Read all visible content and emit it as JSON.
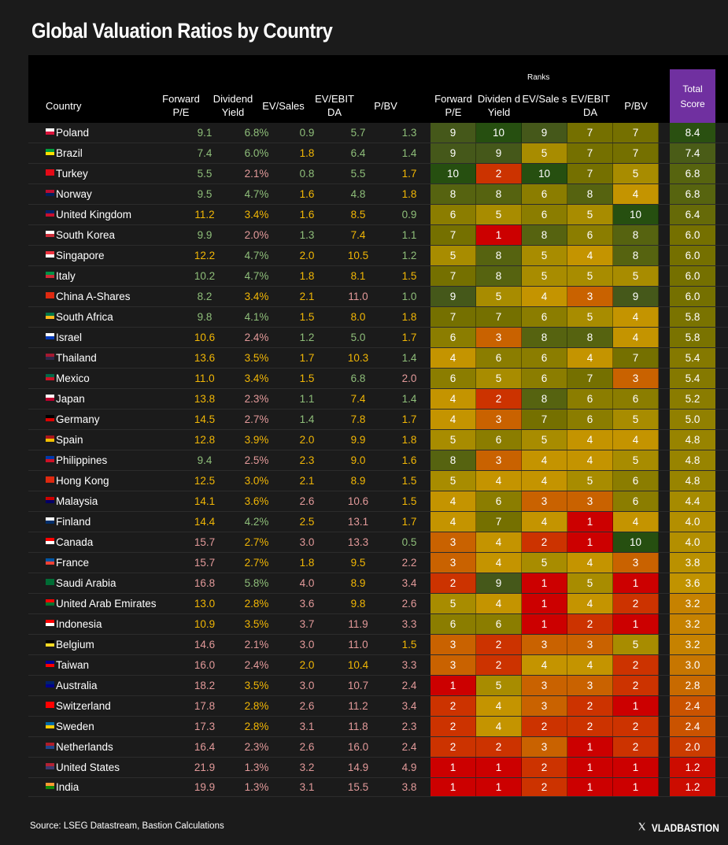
{
  "chart_data": {
    "type": "table",
    "title": "Global Valuation Ratios by Country",
    "columns": [
      "Country",
      "Forward P/E",
      "Dividend Yield",
      "EV/Sales",
      "EV/EBIT DA",
      "P/BV"
    ],
    "ranks_label": "Ranks",
    "rank_columns": [
      "Forward P/E",
      "Dividen d Yield",
      "EV/Sale s",
      "EV/EBIT DA",
      "P/BV"
    ],
    "total_label": "Total Score",
    "text_color_key": {
      "g": "#8fbf7a",
      "y": "#f2b705",
      "p": "#e39a9a"
    },
    "rows": [
      {
        "country": "Poland",
        "flag": [
          "#ffffff",
          "#dc143c"
        ],
        "values": [
          "9.1",
          "6.8%",
          "0.9",
          "5.7",
          "1.3"
        ],
        "colors": "ggggg",
        "ranks": [
          9,
          10,
          9,
          7,
          7
        ],
        "total": "8.4"
      },
      {
        "country": "Brazil",
        "flag": [
          "#009c3b",
          "#ffdf00"
        ],
        "values": [
          "7.4",
          "6.0%",
          "1.8",
          "6.4",
          "1.4"
        ],
        "colors": "ggygg",
        "ranks": [
          9,
          9,
          5,
          7,
          7
        ],
        "total": "7.4"
      },
      {
        "country": "Turkey",
        "flag": [
          "#e30a17",
          "#e30a17"
        ],
        "values": [
          "5.5",
          "2.1%",
          "0.8",
          "5.5",
          "1.7"
        ],
        "colors": "gpggy",
        "ranks": [
          10,
          2,
          10,
          7,
          5
        ],
        "total": "6.8"
      },
      {
        "country": "Norway",
        "flag": [
          "#ba0c2f",
          "#00205b"
        ],
        "values": [
          "9.5",
          "4.7%",
          "1.6",
          "4.8",
          "1.8"
        ],
        "colors": "ggygy",
        "ranks": [
          8,
          8,
          6,
          8,
          4
        ],
        "total": "6.8"
      },
      {
        "country": "United Kingdom",
        "flag": [
          "#012169",
          "#c8102e"
        ],
        "values": [
          "11.2",
          "3.4%",
          "1.6",
          "8.5",
          "0.9"
        ],
        "colors": "yyyyg",
        "ranks": [
          6,
          5,
          6,
          5,
          10
        ],
        "total": "6.4"
      },
      {
        "country": "South Korea",
        "flag": [
          "#ffffff",
          "#cd2e3a"
        ],
        "values": [
          "9.9",
          "2.0%",
          "1.3",
          "7.4",
          "1.1"
        ],
        "colors": "gpgyg",
        "ranks": [
          7,
          1,
          8,
          6,
          8
        ],
        "total": "6.0"
      },
      {
        "country": "Singapore",
        "flag": [
          "#ef3340",
          "#ffffff"
        ],
        "values": [
          "12.2",
          "4.7%",
          "2.0",
          "10.5",
          "1.2"
        ],
        "colors": "ygyyg",
        "ranks": [
          5,
          8,
          5,
          4,
          8
        ],
        "total": "6.0"
      },
      {
        "country": "Italy",
        "flag": [
          "#009246",
          "#ce2b37"
        ],
        "values": [
          "10.2",
          "4.7%",
          "1.8",
          "8.1",
          "1.5"
        ],
        "colors": "ggyyy",
        "ranks": [
          7,
          8,
          5,
          5,
          5
        ],
        "total": "6.0"
      },
      {
        "country": "China A-Shares",
        "flag": [
          "#de2910",
          "#de2910"
        ],
        "values": [
          "8.2",
          "3.4%",
          "2.1",
          "11.0",
          "1.0"
        ],
        "colors": "gyypg",
        "ranks": [
          9,
          5,
          4,
          3,
          9
        ],
        "total": "6.0"
      },
      {
        "country": "South Africa",
        "flag": [
          "#007749",
          "#ffb81c"
        ],
        "values": [
          "9.8",
          "4.1%",
          "1.5",
          "8.0",
          "1.8"
        ],
        "colors": "ggyyy",
        "ranks": [
          7,
          7,
          6,
          5,
          4
        ],
        "total": "5.8"
      },
      {
        "country": "Israel",
        "flag": [
          "#ffffff",
          "#0038b8"
        ],
        "values": [
          "10.6",
          "2.4%",
          "1.2",
          "5.0",
          "1.7"
        ],
        "colors": "ypggy",
        "ranks": [
          6,
          3,
          8,
          8,
          4
        ],
        "total": "5.8"
      },
      {
        "country": "Thailand",
        "flag": [
          "#a51931",
          "#2d2a4a"
        ],
        "values": [
          "13.6",
          "3.5%",
          "1.7",
          "10.3",
          "1.4"
        ],
        "colors": "yyyyg",
        "ranks": [
          4,
          6,
          6,
          4,
          7
        ],
        "total": "5.4"
      },
      {
        "country": "Mexico",
        "flag": [
          "#006847",
          "#ce1126"
        ],
        "values": [
          "11.0",
          "3.4%",
          "1.5",
          "6.8",
          "2.0"
        ],
        "colors": "yyygp",
        "ranks": [
          6,
          5,
          6,
          7,
          3
        ],
        "total": "5.4"
      },
      {
        "country": "Japan",
        "flag": [
          "#ffffff",
          "#bc002d"
        ],
        "values": [
          "13.8",
          "2.3%",
          "1.1",
          "7.4",
          "1.4"
        ],
        "colors": "ypgyg",
        "ranks": [
          4,
          2,
          8,
          6,
          6
        ],
        "total": "5.2"
      },
      {
        "country": "Germany",
        "flag": [
          "#000000",
          "#dd0000"
        ],
        "values": [
          "14.5",
          "2.7%",
          "1.4",
          "7.8",
          "1.7"
        ],
        "colors": "ypgyy",
        "ranks": [
          4,
          3,
          7,
          6,
          5
        ],
        "total": "5.0"
      },
      {
        "country": "Spain",
        "flag": [
          "#aa151b",
          "#f1bf00"
        ],
        "values": [
          "12.8",
          "3.9%",
          "2.0",
          "9.9",
          "1.8"
        ],
        "colors": "yyyyy",
        "ranks": [
          5,
          6,
          5,
          4,
          4
        ],
        "total": "4.8"
      },
      {
        "country": "Philippines",
        "flag": [
          "#0038a8",
          "#ce1126"
        ],
        "values": [
          "9.4",
          "2.5%",
          "2.3",
          "9.0",
          "1.6"
        ],
        "colors": "gpyyy",
        "ranks": [
          8,
          3,
          4,
          4,
          5
        ],
        "total": "4.8"
      },
      {
        "country": "Hong Kong",
        "flag": [
          "#de2910",
          "#de2910"
        ],
        "values": [
          "12.5",
          "3.0%",
          "2.1",
          "8.9",
          "1.5"
        ],
        "colors": "yyyyy",
        "ranks": [
          5,
          4,
          4,
          5,
          6
        ],
        "total": "4.8"
      },
      {
        "country": "Malaysia",
        "flag": [
          "#cc0001",
          "#010066"
        ],
        "values": [
          "14.1",
          "3.6%",
          "2.6",
          "10.6",
          "1.5"
        ],
        "colors": "yyppy",
        "ranks": [
          4,
          6,
          3,
          3,
          6
        ],
        "total": "4.4"
      },
      {
        "country": "Finland",
        "flag": [
          "#ffffff",
          "#002f6c"
        ],
        "values": [
          "14.4",
          "4.2%",
          "2.5",
          "13.1",
          "1.7"
        ],
        "colors": "ygypy",
        "ranks": [
          4,
          7,
          4,
          1,
          4
        ],
        "total": "4.0"
      },
      {
        "country": "Canada",
        "flag": [
          "#ff0000",
          "#ffffff"
        ],
        "values": [
          "15.7",
          "2.7%",
          "3.0",
          "13.3",
          "0.5"
        ],
        "colors": "pyppg",
        "ranks": [
          3,
          4,
          2,
          1,
          10
        ],
        "total": "4.0"
      },
      {
        "country": "France",
        "flag": [
          "#0055a4",
          "#ef4135"
        ],
        "values": [
          "15.7",
          "2.7%",
          "1.8",
          "9.5",
          "2.2"
        ],
        "colors": "pyyyp",
        "ranks": [
          3,
          4,
          5,
          4,
          3
        ],
        "total": "3.8"
      },
      {
        "country": "Saudi Arabia",
        "flag": [
          "#006c35",
          "#006c35"
        ],
        "values": [
          "16.8",
          "5.8%",
          "4.0",
          "8.9",
          "3.4"
        ],
        "colors": "pgpyp",
        "ranks": [
          2,
          9,
          1,
          5,
          1
        ],
        "total": "3.6"
      },
      {
        "country": "United Arab Emirates",
        "flag": [
          "#ff0000",
          "#00732f"
        ],
        "values": [
          "13.0",
          "2.8%",
          "3.6",
          "9.8",
          "2.6"
        ],
        "colors": "yypyp",
        "ranks": [
          5,
          4,
          1,
          4,
          2
        ],
        "total": "3.2"
      },
      {
        "country": "Indonesia",
        "flag": [
          "#ff0000",
          "#ffffff"
        ],
        "values": [
          "10.9",
          "3.5%",
          "3.7",
          "11.9",
          "3.3"
        ],
        "colors": "yyppp",
        "ranks": [
          6,
          6,
          1,
          2,
          1
        ],
        "total": "3.2"
      },
      {
        "country": "Belgium",
        "flag": [
          "#000000",
          "#fdda24"
        ],
        "values": [
          "14.6",
          "2.1%",
          "3.0",
          "11.0",
          "1.5"
        ],
        "colors": "ppppy",
        "ranks": [
          3,
          2,
          3,
          3,
          5
        ],
        "total": "3.2"
      },
      {
        "country": "Taiwan",
        "flag": [
          "#000095",
          "#fe0000"
        ],
        "values": [
          "16.0",
          "2.4%",
          "2.0",
          "10.4",
          "3.3"
        ],
        "colors": "ppyyp",
        "ranks": [
          3,
          2,
          4,
          4,
          2
        ],
        "total": "3.0"
      },
      {
        "country": "Australia",
        "flag": [
          "#012169",
          "#00008b"
        ],
        "values": [
          "18.2",
          "3.5%",
          "3.0",
          "10.7",
          "2.4"
        ],
        "colors": "pyppp",
        "ranks": [
          1,
          5,
          3,
          3,
          2
        ],
        "total": "2.8"
      },
      {
        "country": "Switzerland",
        "flag": [
          "#ff0000",
          "#ff0000"
        ],
        "values": [
          "17.8",
          "2.8%",
          "2.6",
          "11.2",
          "3.4"
        ],
        "colors": "pyppp",
        "ranks": [
          2,
          4,
          3,
          2,
          1
        ],
        "total": "2.4"
      },
      {
        "country": "Sweden",
        "flag": [
          "#006aa7",
          "#fecc00"
        ],
        "values": [
          "17.3",
          "2.8%",
          "3.1",
          "11.8",
          "2.3"
        ],
        "colors": "pyppp",
        "ranks": [
          2,
          4,
          2,
          2,
          2
        ],
        "total": "2.4"
      },
      {
        "country": "Netherlands",
        "flag": [
          "#ae1c28",
          "#21468b"
        ],
        "values": [
          "16.4",
          "2.3%",
          "2.6",
          "16.0",
          "2.4"
        ],
        "colors": "ppppp",
        "ranks": [
          2,
          2,
          3,
          1,
          2
        ],
        "total": "2.0"
      },
      {
        "country": "United States",
        "flag": [
          "#b22234",
          "#3c3b6e"
        ],
        "values": [
          "21.9",
          "1.3%",
          "3.2",
          "14.9",
          "4.9"
        ],
        "colors": "ppppp",
        "ranks": [
          1,
          1,
          2,
          1,
          1
        ],
        "total": "1.2"
      },
      {
        "country": "India",
        "flag": [
          "#ff9933",
          "#138808"
        ],
        "values": [
          "19.9",
          "1.3%",
          "3.1",
          "15.5",
          "3.8"
        ],
        "colors": "ppppp",
        "ranks": [
          1,
          1,
          2,
          1,
          1
        ],
        "total": "1.2"
      }
    ]
  },
  "source": "Source: LSEG Datastream, Bastion Calculations",
  "brand": "VLADBASTION",
  "brand_icon": "x-logo-icon",
  "rank_colors": [
    "#cc0000",
    "#cc3300",
    "#c96200",
    "#c49400",
    "#a88c00",
    "#8b7d00",
    "#757000",
    "#566310",
    "#45581a",
    "#264f10"
  ],
  "total_header_color": "#7030a0"
}
